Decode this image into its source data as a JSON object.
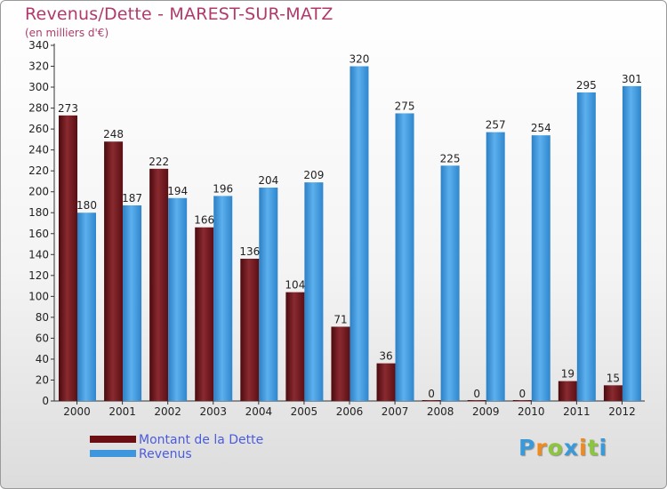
{
  "title": "Revenus/Dette - MAREST-SUR-MATZ",
  "subtitle": "(en milliers d'€)",
  "chart_data": {
    "type": "bar",
    "title": "Revenus/Dette - MAREST-SUR-MATZ",
    "ylabel": "(en milliers d'€)",
    "xlabel": "",
    "ylim": [
      0,
      340
    ],
    "ytick_step": 20,
    "grid": false,
    "legend_position": "bottom-left",
    "categories": [
      "2000",
      "2001",
      "2002",
      "2003",
      "2004",
      "2005",
      "2006",
      "2007",
      "2008",
      "2009",
      "2010",
      "2011",
      "2012"
    ],
    "series": [
      {
        "name": "Montant de la Dette",
        "color": "#7a1e24",
        "values": [
          273,
          248,
          222,
          166,
          136,
          104,
          71,
          36,
          0,
          0,
          0,
          19,
          15
        ]
      },
      {
        "name": "Revenus",
        "color": "#3e97dd",
        "values": [
          180,
          187,
          194,
          196,
          204,
          209,
          320,
          275,
          225,
          257,
          254,
          295,
          301
        ]
      }
    ]
  },
  "legend": {
    "items": [
      {
        "label": "Montant de la Dette",
        "color": "#6b0f14"
      },
      {
        "label": "Revenus",
        "color": "#3e97dd"
      }
    ]
  },
  "logo": {
    "letters": [
      "P",
      "r",
      "o",
      "x",
      "i",
      "t",
      "i"
    ],
    "colors": [
      "#3a9ad9",
      "#f08a1c",
      "#8cc63f",
      "#3a9ad9",
      "#f08a1c",
      "#8cc63f",
      "#3a9ad9"
    ]
  }
}
